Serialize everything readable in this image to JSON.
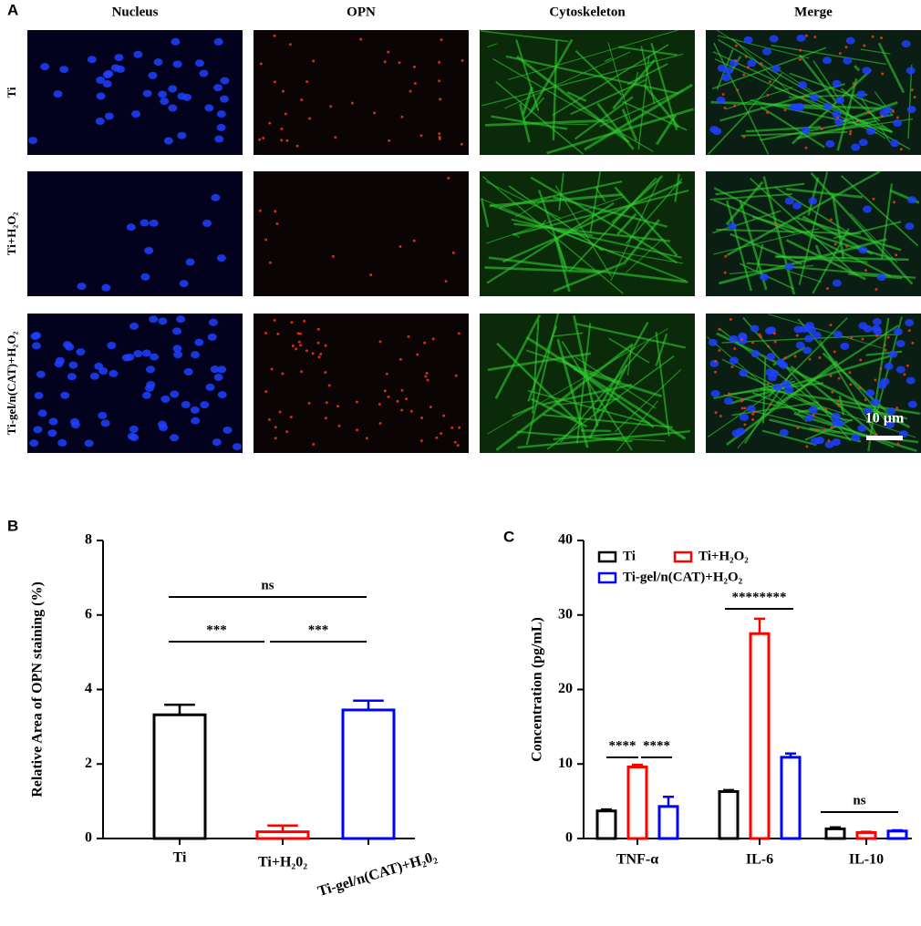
{
  "panel_a": {
    "label": "A",
    "columns": [
      "Nucleus",
      "OPN",
      "Cytoskeleton",
      "Merge"
    ],
    "rows": [
      "Ti",
      "Ti+H₂O₂",
      "Ti-gel/n(CAT)+H₂O₂"
    ],
    "scale_bar": "10 µm"
  },
  "chart_data": [
    {
      "type": "bar",
      "label": "B",
      "ylabel": "Relative Area of OPN staining (%)",
      "categories": [
        "Ti",
        "Ti+H₂0₂",
        "Ti-gel/n(CAT)+H₂0₂"
      ],
      "values": [
        3.32,
        0.18,
        3.45
      ],
      "errors": [
        0.27,
        0.17,
        0.25
      ],
      "colors": [
        "#000000",
        "#ff0000",
        "#0000ff"
      ],
      "ylim": [
        0,
        8
      ],
      "yticks": [
        0,
        2,
        4,
        6,
        8
      ],
      "grid": false,
      "annotations": [
        "ns",
        "***",
        "***"
      ]
    },
    {
      "type": "grouped_bar",
      "label": "C",
      "ylabel": "Concentration (pg/mL)",
      "categories": [
        "TNF-α",
        "IL-6",
        "IL-10"
      ],
      "series": [
        {
          "name": "Ti",
          "color": "#000000",
          "values": [
            3.7,
            6.3,
            1.3
          ],
          "errors": [
            0.2,
            0.2,
            0.2
          ]
        },
        {
          "name": "Ti+H₂O₂",
          "color": "#ff0000",
          "values": [
            9.6,
            27.5,
            0.8
          ],
          "errors": [
            0.3,
            2.0,
            0.1
          ]
        },
        {
          "name": "Ti-gel/n(CAT)+H₂O₂",
          "color": "#0000ff",
          "values": [
            4.3,
            10.9,
            1.0
          ],
          "errors": [
            1.3,
            0.5,
            0.1
          ]
        }
      ],
      "ylim": [
        0,
        40
      ],
      "yticks": [
        0,
        10,
        20,
        30,
        40
      ],
      "grid": false,
      "legend": "top-left",
      "annotations": [
        "****",
        "****",
        "********",
        "ns"
      ]
    }
  ]
}
